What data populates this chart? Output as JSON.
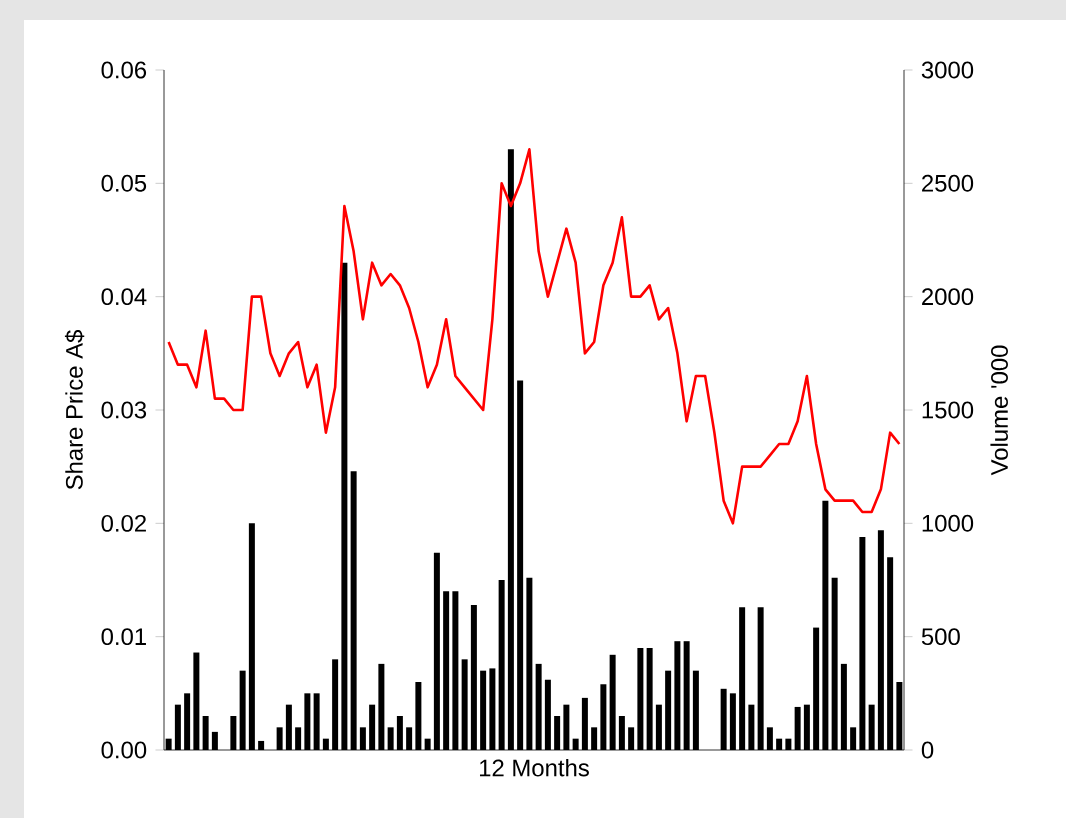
{
  "chart_data": {
    "type": "line",
    "xlabel": "12 Months",
    "ylabel": "Share Price A$",
    "y2label": "Volume '000",
    "categories": [
      null,
      null,
      null,
      null,
      null,
      null,
      null,
      null,
      null,
      null,
      null,
      null,
      null,
      null,
      null,
      null,
      null,
      null,
      null,
      null,
      null,
      null,
      null,
      null,
      null,
      null,
      null,
      null,
      null,
      null,
      null,
      null,
      null,
      null,
      null,
      null,
      null,
      null,
      null,
      null,
      null,
      null,
      null,
      null,
      null,
      null,
      null,
      null,
      null,
      null,
      null,
      null,
      null,
      null,
      null,
      null,
      null,
      null,
      null,
      null,
      null,
      null,
      null,
      null,
      null,
      null,
      null,
      null,
      null,
      null,
      null,
      null,
      null,
      null,
      null,
      null,
      null,
      null,
      null,
      null
    ],
    "ylim": [
      0,
      0.06
    ],
    "yticks": [
      {
        "value": 0,
        "label": "0.00"
      },
      {
        "value": 0.01,
        "label": "0.01"
      },
      {
        "value": 0.02,
        "label": "0.02"
      },
      {
        "value": 0.03,
        "label": "0.03"
      },
      {
        "value": 0.04,
        "label": "0.04"
      },
      {
        "value": 0.05,
        "label": "0.05"
      },
      {
        "value": 0.06,
        "label": "0.06"
      }
    ],
    "y2lim": [
      0,
      3000
    ],
    "y2ticks": [
      0,
      500,
      1000,
      1500,
      2000,
      2500,
      3000
    ],
    "series": [
      {
        "color": "#ff0000",
        "values": [
          0.036,
          0.034,
          0.034,
          0.032,
          0.037,
          0.031,
          0.031,
          0.03,
          0.03,
          0.04,
          0.04,
          0.035,
          0.033,
          0.035,
          0.036,
          0.032,
          0.034,
          0.028,
          0.032,
          0.048,
          0.044,
          0.038,
          0.043,
          0.041,
          0.042,
          0.041,
          0.039,
          0.036,
          0.032,
          0.034,
          0.038,
          0.033,
          0.032,
          0.031,
          0.03,
          0.038,
          0.05,
          0.048,
          0.05,
          0.053,
          0.044,
          0.04,
          0.043,
          0.046,
          0.043,
          0.035,
          0.036,
          0.041,
          0.043,
          0.047,
          0.04,
          0.04,
          0.041,
          0.038,
          0.039,
          0.035,
          0.029,
          0.033,
          0.033,
          0.028,
          0.022,
          0.02,
          0.025,
          0.025,
          0.025,
          0.026,
          0.027,
          0.027,
          0.029,
          0.033,
          0.027,
          0.023,
          0.022,
          0.022,
          0.022,
          0.021,
          0.021,
          0.023,
          0.028,
          0.027
        ]
      },
      {
        "type": "bar",
        "axis": "y2",
        "color": "#000000",
        "values": [
          50,
          200,
          250,
          430,
          150,
          80,
          0,
          150,
          350,
          1000,
          40,
          0,
          100,
          200,
          100,
          250,
          250,
          50,
          400,
          2150,
          1230,
          100,
          200,
          380,
          100,
          150,
          100,
          300,
          50,
          870,
          700,
          700,
          400,
          640,
          350,
          360,
          750,
          2650,
          1630,
          760,
          380,
          310,
          150,
          200,
          50,
          230,
          100,
          290,
          420,
          150,
          100,
          450,
          450,
          200,
          350,
          480,
          480,
          350,
          0,
          0,
          270,
          250,
          630,
          200,
          630,
          100,
          50,
          50,
          190,
          200,
          540,
          1100,
          760,
          380,
          100,
          940,
          200,
          970,
          850,
          300
        ]
      }
    ]
  }
}
